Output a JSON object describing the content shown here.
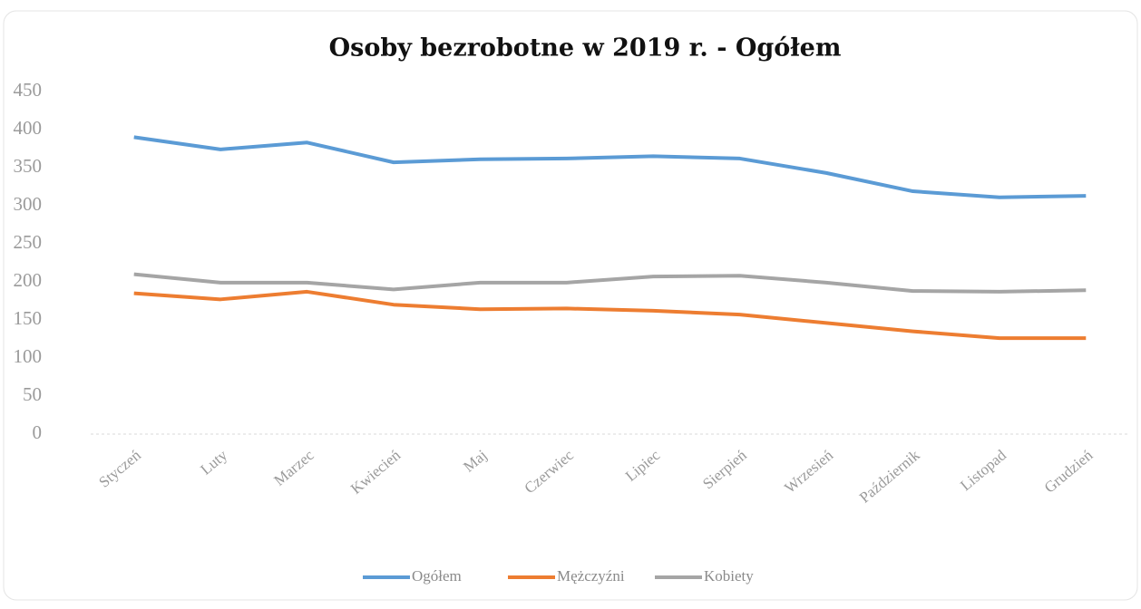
{
  "chart_data": {
    "type": "line",
    "title": "Osoby bezrobotne w 2019 r. - Ogółem",
    "categories": [
      "Styczeń",
      "Luty",
      "Marzec",
      "Kwiecień",
      "Maj",
      "Czerwiec",
      "Lipiec",
      "Sierpień",
      "Wrzesień",
      "Październik",
      "Listopad",
      "Grudzień"
    ],
    "series": [
      {
        "name": "Ogółem",
        "color": "#5b9bd5",
        "values": [
          390,
          374,
          383,
          357,
          361,
          362,
          365,
          362,
          343,
          319,
          311,
          313
        ]
      },
      {
        "name": "Mężczyźni",
        "color": "#ed7d31",
        "values": [
          185,
          177,
          187,
          170,
          164,
          165,
          162,
          157,
          146,
          135,
          126,
          126
        ]
      },
      {
        "name": "Kobiety",
        "color": "#a5a5a5",
        "values": [
          210,
          199,
          199,
          190,
          199,
          199,
          207,
          208,
          199,
          188,
          187,
          189
        ]
      }
    ],
    "ylim": [
      0,
      450
    ],
    "yticks": [
      0,
      50,
      100,
      150,
      200,
      250,
      300,
      350,
      400,
      450
    ],
    "grid": false,
    "legend": "bottom"
  }
}
